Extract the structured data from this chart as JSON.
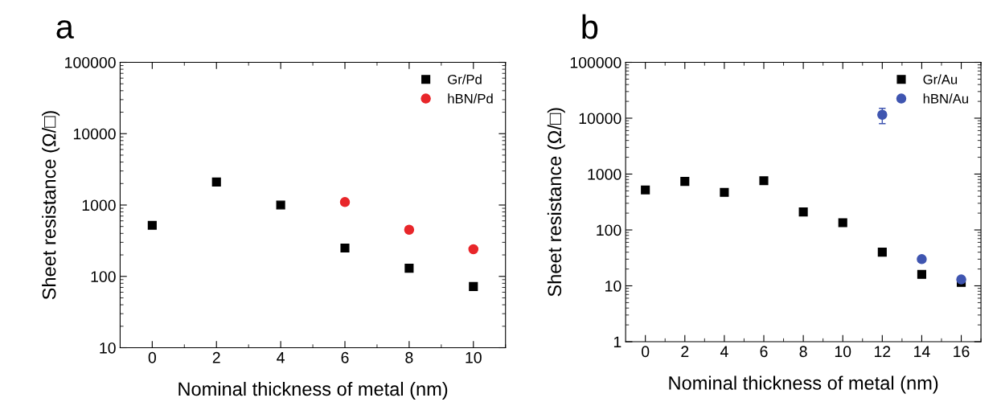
{
  "chart_data": [
    {
      "type": "scatter",
      "annotations": [
        "a"
      ],
      "xlabel": "Nominal thickness of metal (nm)",
      "ylabel": "Sheet resistance (Ω/□)",
      "log": "y",
      "xlim": [
        -1,
        11
      ],
      "xticks": [
        0,
        2,
        4,
        6,
        8,
        10
      ],
      "ylim": [
        10,
        100000
      ],
      "yticks": [
        10,
        100,
        1000,
        10000,
        100000
      ],
      "legend": "top right",
      "grid": false,
      "series": [
        {
          "name": "Gr/Pd",
          "color": "#000000",
          "marker": "square",
          "x": [
            0,
            2,
            4,
            6,
            8,
            10
          ],
          "values": [
            520,
            2100,
            1000,
            250,
            130,
            72
          ]
        },
        {
          "name": "hBN/Pd",
          "color": "#e8262a",
          "marker": "circle",
          "x": [
            6,
            8,
            10
          ],
          "values": [
            1100,
            450,
            240
          ]
        }
      ]
    },
    {
      "type": "scatter",
      "annotations": [
        "b"
      ],
      "xlabel": "Nominal thickness of metal (nm)",
      "ylabel": "Sheet resistance (Ω/□)",
      "log": "y",
      "xlim": [
        -1,
        17
      ],
      "xticks": [
        0,
        2,
        4,
        6,
        8,
        10,
        12,
        14,
        16
      ],
      "ylim": [
        1,
        100000
      ],
      "yticks": [
        1,
        10,
        100,
        1000,
        10000,
        100000
      ],
      "legend": "top right",
      "grid": false,
      "series": [
        {
          "name": "Gr/Au",
          "color": "#000000",
          "marker": "square",
          "x": [
            0,
            2,
            4,
            6,
            8,
            10,
            12,
            14,
            16
          ],
          "values": [
            520,
            740,
            470,
            760,
            210,
            135,
            40,
            16,
            11.5
          ]
        },
        {
          "name": "hBN/Au",
          "color": "#3f55b0",
          "marker": "circle",
          "x": [
            12,
            14,
            16
          ],
          "values": [
            11500,
            30,
            13
          ],
          "errors": [
            [
              8000,
              15000
            ],
            null,
            null
          ]
        }
      ]
    }
  ]
}
